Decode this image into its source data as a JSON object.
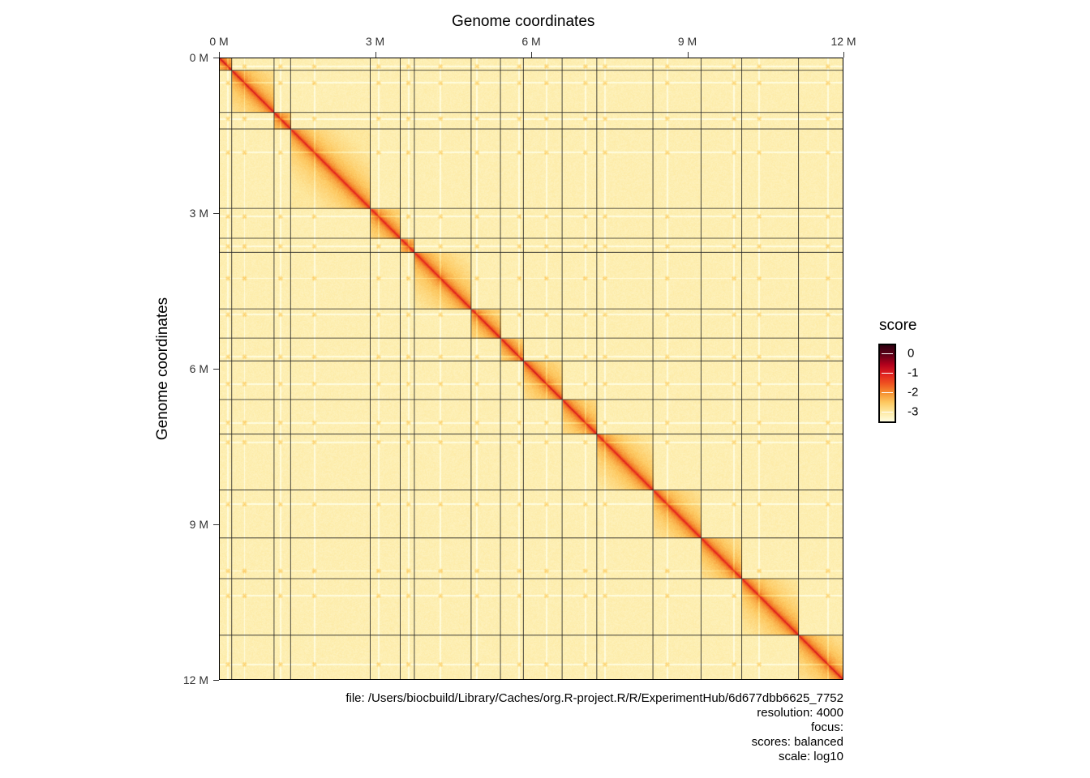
{
  "chart_data": {
    "type": "heatmap",
    "title_top": "Genome coordinates",
    "ylabel": "Genome coordinates",
    "x_ticks": [
      "0 M",
      "3 M",
      "6 M",
      "9 M",
      "12 M"
    ],
    "y_ticks": [
      "0 M",
      "3 M",
      "6 M",
      "9 M",
      "12 M"
    ],
    "tick_values_mb": [
      0,
      3,
      6,
      9,
      12
    ],
    "axis_range_mb": [
      0,
      12.071
    ],
    "chromosome_lengths_mb": [
      0.23,
      0.813,
      0.317,
      1.532,
      0.577,
      0.27,
      1.091,
      0.563,
      0.44,
      0.745,
      0.667,
      1.078,
      0.924,
      0.784,
      1.091,
      0.948
    ],
    "centromere_positions_mb": [
      0.151,
      0.238,
      0.114,
      0.449,
      0.151,
      0.148,
      0.496,
      0.105,
      0.355,
      0.436,
      0.44,
      0.15,
      0.268,
      0.628,
      0.326,
      0.556
    ],
    "legend": {
      "title": "score",
      "labels": [
        "0",
        "-1",
        "-2",
        "-3"
      ],
      "values": [
        0,
        -1,
        -2,
        -3
      ],
      "range": [
        -3.5,
        0.4
      ],
      "position": "right",
      "colors": [
        "#fffde0",
        "#fde9a0",
        "#fdc860",
        "#f59030",
        "#ef5020",
        "#e02020",
        "#b0001c",
        "#600018",
        "#300010"
      ]
    },
    "caption": [
      "file: /Users/biocbuild/Library/Caches/org.R-project.R/R/ExperimentHub/6d677dbb6625_7752",
      "resolution: 4000",
      "focus: ",
      "scores: balanced",
      "scale: log10"
    ]
  }
}
